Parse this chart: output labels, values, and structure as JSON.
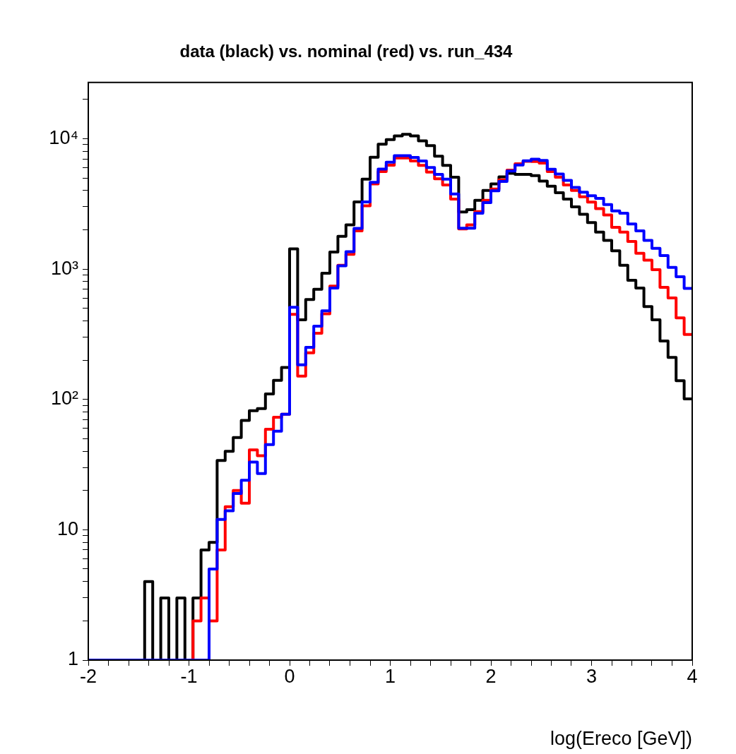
{
  "chart_data": {
    "type": "histogram",
    "title": "data (black) vs. nominal (red) vs. run_434",
    "xlabel": "log(Ereco [GeV])",
    "bins": [
      -2,
      -1.92,
      -1.84,
      -1.76,
      -1.68,
      -1.6,
      -1.52,
      -1.44,
      -1.36,
      -1.28,
      -1.2,
      -1.12,
      -1.04,
      -0.96,
      -0.88,
      -0.8,
      -0.72,
      -0.64,
      -0.56,
      -0.48,
      -0.4,
      -0.32,
      -0.24,
      -0.16,
      -0.08,
      0,
      0.08,
      0.16,
      0.24,
      0.32,
      0.4,
      0.48,
      0.56,
      0.64,
      0.72,
      0.8,
      0.88,
      0.96,
      1.04,
      1.12,
      1.2,
      1.28,
      1.36,
      1.44,
      1.52,
      1.6,
      1.68,
      1.76,
      1.84,
      1.92,
      2,
      2.08,
      2.16,
      2.24,
      2.32,
      2.4,
      2.48,
      2.56,
      2.64,
      2.72,
      2.8,
      2.88,
      2.96,
      3.04,
      3.12,
      3.2,
      3.28,
      3.36,
      3.44,
      3.52,
      3.6,
      3.68,
      3.76,
      3.84,
      3.92,
      4
    ],
    "series": [
      {
        "color": "#000000",
        "values": [
          null,
          null,
          null,
          null,
          null,
          null,
          null,
          4,
          null,
          3,
          null,
          3,
          null,
          3,
          7,
          8,
          34,
          40,
          51,
          69,
          82,
          85,
          110,
          140,
          176,
          1430,
          408,
          583,
          700,
          930,
          1350,
          1780,
          2180,
          3270,
          4900,
          7200,
          9060,
          9840,
          10500,
          10800,
          10500,
          9630,
          8860,
          7330,
          6240,
          5060,
          2740,
          2850,
          3370,
          4010,
          4500,
          5100,
          5430,
          5320,
          5320,
          5210,
          4730,
          4320,
          3850,
          3440,
          2995,
          2630,
          2270,
          1920,
          1660,
          1380,
          1070,
          820,
          715,
          515,
          408,
          281,
          210,
          139,
          101
        ]
      },
      {
        "color": "#ff0000",
        "values": [
          null,
          null,
          null,
          null,
          null,
          null,
          null,
          null,
          null,
          null,
          null,
          null,
          null,
          2,
          3,
          2,
          7,
          15,
          20,
          16,
          41,
          37,
          59,
          73,
          77,
          449,
          151,
          228,
          322,
          454,
          739,
          1070,
          1295,
          1960,
          3060,
          4500,
          5590,
          6270,
          7110,
          7110,
          6740,
          6240,
          5540,
          4930,
          4410,
          3440,
          2030,
          2180,
          2760,
          3370,
          4110,
          4830,
          5730,
          6410,
          6700,
          6680,
          6490,
          5590,
          5060,
          4410,
          4010,
          3580,
          3260,
          2910,
          2600,
          2090,
          1920,
          1630,
          1320,
          1170,
          988,
          724,
          600,
          422,
          315
        ]
      },
      {
        "color": "#0000ff",
        "values": [
          null,
          null,
          null,
          null,
          null,
          null,
          null,
          null,
          null,
          null,
          null,
          null,
          null,
          null,
          null,
          5,
          12,
          14,
          19,
          24,
          33,
          27,
          45,
          57,
          77,
          509,
          184,
          251,
          365,
          478,
          715,
          1060,
          1360,
          2050,
          3270,
          4630,
          5850,
          6600,
          7410,
          7410,
          7180,
          6740,
          6020,
          5320,
          4900,
          3770,
          2060,
          2060,
          2680,
          3230,
          3980,
          4700,
          5650,
          6280,
          6760,
          6960,
          6820,
          5830,
          5360,
          4790,
          4230,
          3890,
          3650,
          3480,
          3120,
          2790,
          2680,
          2220,
          1960,
          1660,
          1440,
          1270,
          1030,
          873,
          710
        ]
      }
    ],
    "log": "y",
    "grid": false,
    "legend": false,
    "xlim": [
      -2,
      4
    ],
    "xticks": [
      -2,
      {
        "value": -1.8,
        "label": null
      },
      {
        "value": -1.6,
        "label": null
      },
      {
        "value": -1.4,
        "label": null
      },
      {
        "value": -1.2,
        "label": null
      },
      -1,
      {
        "value": -0.8,
        "label": null
      },
      {
        "value": -0.6,
        "label": null
      },
      {
        "value": -0.4,
        "label": null
      },
      {
        "value": -0.2,
        "label": null
      },
      0,
      {
        "value": 0.2,
        "label": null
      },
      {
        "value": 0.4,
        "label": null
      },
      {
        "value": 0.6,
        "label": null
      },
      {
        "value": 0.8,
        "label": null
      },
      1,
      {
        "value": 1.2,
        "label": null
      },
      {
        "value": 1.4,
        "label": null
      },
      {
        "value": 1.6,
        "label": null
      },
      {
        "value": 1.8,
        "label": null
      },
      2,
      {
        "value": 2.2,
        "label": null
      },
      {
        "value": 2.4,
        "label": null
      },
      {
        "value": 2.6,
        "label": null
      },
      {
        "value": 2.8,
        "label": null
      },
      3,
      {
        "value": 3.2,
        "label": null
      },
      {
        "value": 3.4,
        "label": null
      },
      {
        "value": 3.6,
        "label": null
      },
      {
        "value": 3.8,
        "label": null
      },
      4
    ],
    "ylim": [
      1,
      27000
    ],
    "yticks": [
      1,
      {
        "value": 2,
        "label": null
      },
      {
        "value": 3,
        "label": null
      },
      {
        "value": 4,
        "label": null
      },
      {
        "value": 5,
        "label": null
      },
      {
        "value": 6,
        "label": null
      },
      {
        "value": 7,
        "label": null
      },
      {
        "value": 8,
        "label": null
      },
      {
        "value": 9,
        "label": null
      },
      10,
      {
        "value": 20,
        "label": null
      },
      {
        "value": 30,
        "label": null
      },
      {
        "value": 40,
        "label": null
      },
      {
        "value": 50,
        "label": null
      },
      {
        "value": 60,
        "label": null
      },
      {
        "value": 70,
        "label": null
      },
      {
        "value": 80,
        "label": null
      },
      {
        "value": 90,
        "label": null
      },
      {
        "value": 100,
        "label": "10²"
      },
      {
        "value": 200,
        "label": null
      },
      {
        "value": 300,
        "label": null
      },
      {
        "value": 400,
        "label": null
      },
      {
        "value": 500,
        "label": null
      },
      {
        "value": 600,
        "label": null
      },
      {
        "value": 700,
        "label": null
      },
      {
        "value": 800,
        "label": null
      },
      {
        "value": 900,
        "label": null
      },
      {
        "value": 1000,
        "label": "10³"
      },
      {
        "value": 2000,
        "label": null
      },
      {
        "value": 3000,
        "label": null
      },
      {
        "value": 4000,
        "label": null
      },
      {
        "value": 5000,
        "label": null
      },
      {
        "value": 6000,
        "label": null
      },
      {
        "value": 7000,
        "label": null
      },
      {
        "value": 8000,
        "label": null
      },
      {
        "value": 9000,
        "label": null
      },
      {
        "value": 10000,
        "label": "10⁴"
      },
      {
        "value": 20000,
        "label": null
      }
    ]
  }
}
